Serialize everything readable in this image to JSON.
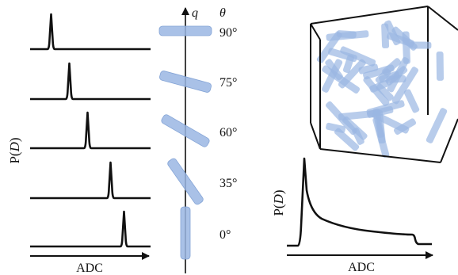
{
  "left_panel": {
    "y_label_prefix": "P(",
    "y_label_var": "D",
    "y_label_suffix": ")",
    "x_label": "ADC",
    "curve_color": "#111111"
  },
  "rotation_axis": {
    "q_label": "q",
    "theta_label": "θ",
    "rod_color": "#9ab6e3",
    "angles": [
      "90°",
      "75°",
      "60°",
      "35°",
      "0°"
    ]
  },
  "right_panel": {
    "y_label_prefix": "P(",
    "y_label_var": "D",
    "y_label_suffix": ")",
    "x_label": "ADC",
    "rod_color": "#9ab6e3"
  }
}
